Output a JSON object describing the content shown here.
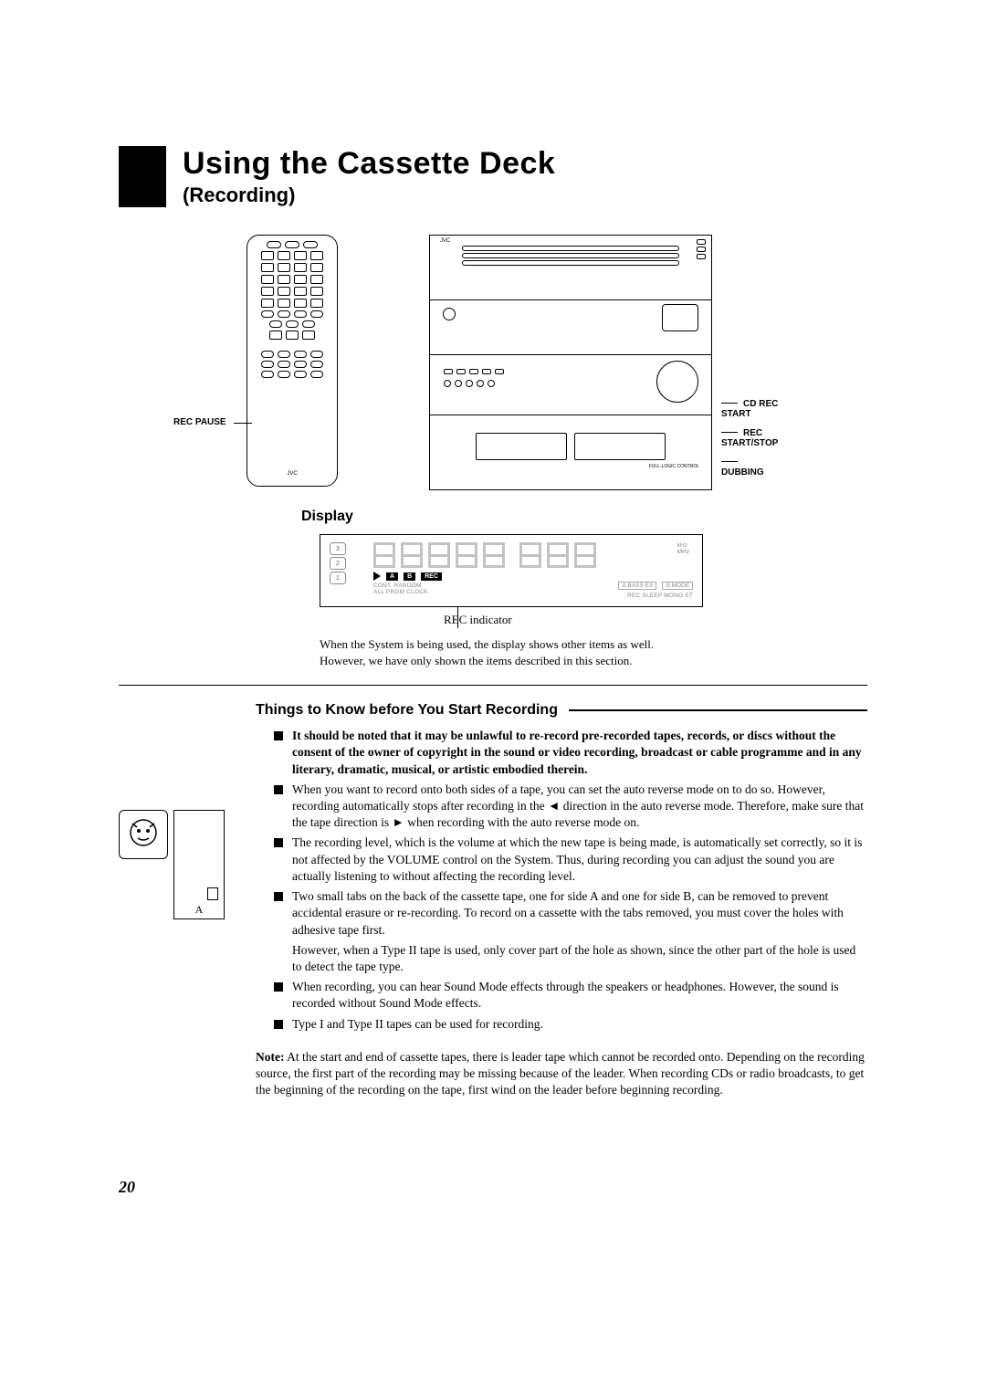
{
  "title": "Using the Cassette Deck",
  "subtitle": "(Recording)",
  "remote_label": "REC PAUSE",
  "stack_labels": {
    "cd_rec_start": "CD REC START",
    "rec_start_stop": "REC START/STOP",
    "dubbing": "DUBBING"
  },
  "display_heading": "Display",
  "display": {
    "disc_numbers": [
      "3",
      "2",
      "1"
    ],
    "badges": {
      "a": "A",
      "b": "B",
      "rec": "REC"
    },
    "line1_text": "CONT. RANDOM",
    "line2_text": "ALL  PRGM CLOCK",
    "right_badges": {
      "abass": "A.BASS EX",
      "smode": "S.MODE"
    },
    "right_line": "REC  SLEEP  MONO ST",
    "khz": "kHz",
    "mhz": "MHz",
    "rec_indicator_label": "REC indicator",
    "note_line1": "When the System is being used, the display shows other items as well.",
    "note_line2": "However, we have only shown the items described in this section."
  },
  "things_heading": "Things to Know before You Start Recording",
  "cassette_label": "A",
  "bullets": [
    {
      "style": "solid",
      "bold": true,
      "text": "It should be noted that it may be unlawful to re-record pre-recorded tapes, records, or discs without the consent of the owner of copyright in the sound or video recording, broadcast or cable programme and in any literary, dramatic, musical, or artistic embodied therein."
    },
    {
      "style": "solid",
      "bold": false,
      "text": "When you want to record onto both sides of a tape, you can set the auto reverse mode on to do so. However, recording automatically stops after recording in the ◄ direction in the auto reverse mode. Therefore, make sure that the tape direction is ► when recording with the auto reverse mode on."
    },
    {
      "style": "solid",
      "bold": false,
      "text": "The recording level, which is the volume at which the new tape is being made, is automatically set correctly, so it is not affected by the VOLUME control on the System. Thus, during recording you can adjust the sound you are actually listening to without affecting the recording level."
    },
    {
      "style": "solid",
      "bold": false,
      "text": "Two small tabs on the back of the cassette tape, one for side A and one for side B, can be removed to prevent accidental erasure or re-recording. To record on a cassette with the tabs removed, you must cover the holes with adhesive tape first."
    },
    {
      "style": "none",
      "bold": false,
      "text": "However, when a Type II tape is used, only cover part of the hole as shown, since the other part of the hole is used to detect the tape type."
    },
    {
      "style": "solid",
      "bold": false,
      "text": "When recording, you can hear Sound Mode effects through the speakers or headphones. However, the sound is recorded without Sound Mode effects."
    },
    {
      "style": "solid",
      "bold": false,
      "text": "Type I and Type II tapes can be used for recording."
    }
  ],
  "note": {
    "label": "Note:",
    "text": " At the start and end of cassette tapes, there is leader tape which cannot be recorded onto. Depending on the recording source, the first part of the recording may be missing because of the leader. When recording CDs or radio broadcasts, to get the beginning of the recording on the tape, first wind on the leader before beginning recording."
  },
  "page_number": "20"
}
